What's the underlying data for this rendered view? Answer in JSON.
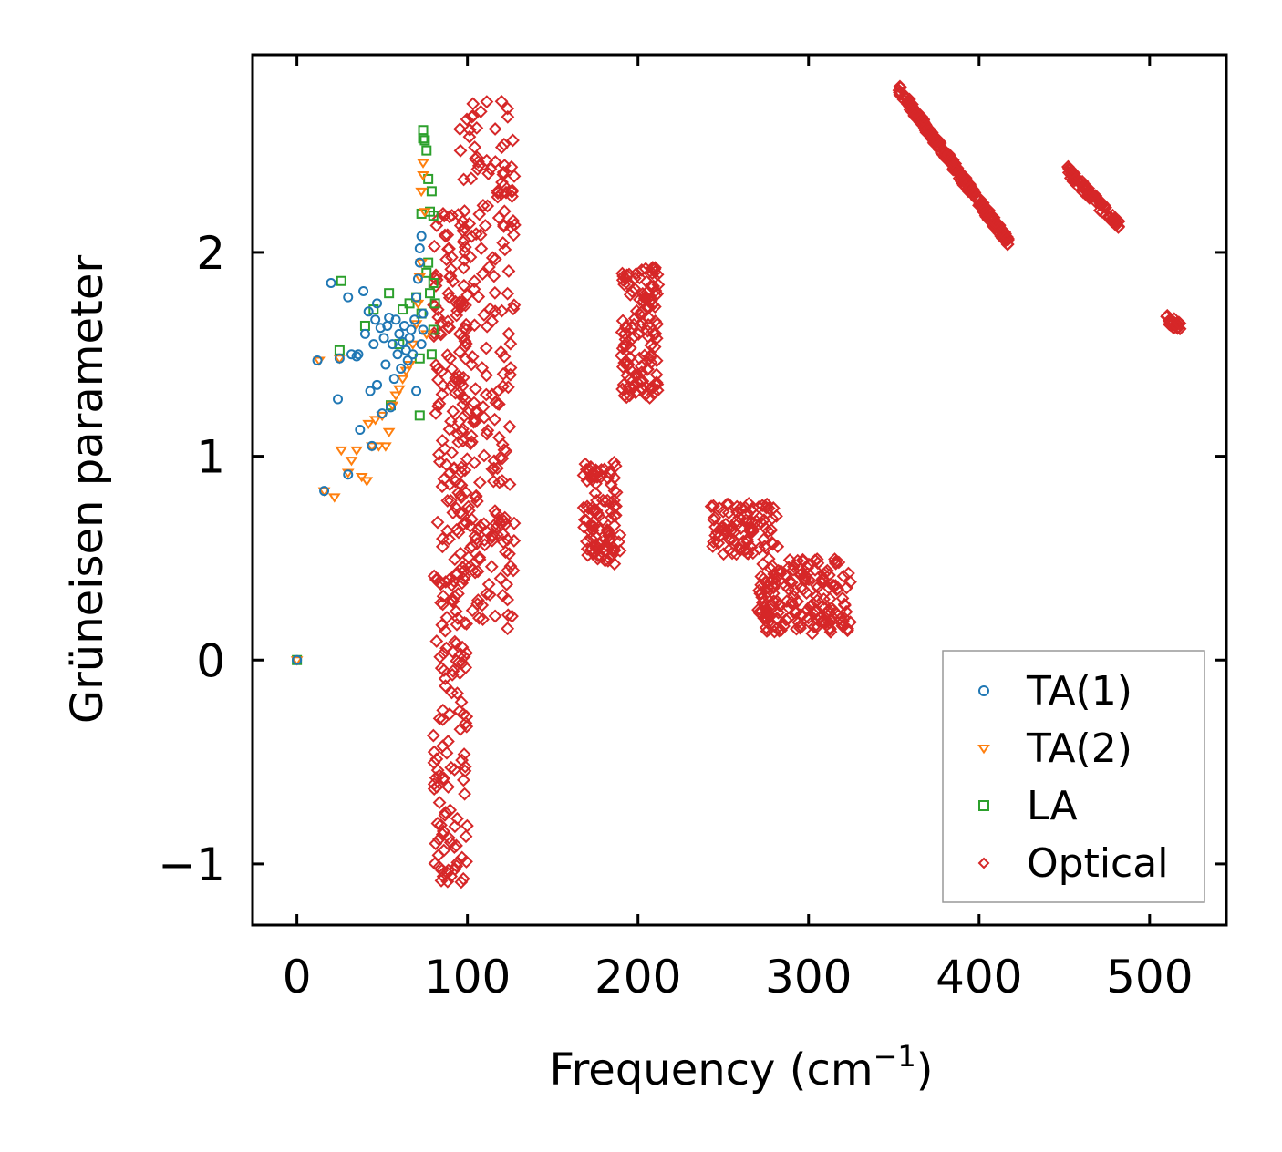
{
  "chart_data": {
    "type": "scatter",
    "xlabel": "Frequency (cm",
    "xlabel_sup": "−1",
    "xlabel_close": ")",
    "ylabel": "Grüneisen parameter",
    "xlim": [
      -26,
      545
    ],
    "ylim": [
      -1.3,
      2.97
    ],
    "xticks": [
      0,
      100,
      200,
      300,
      400,
      500
    ],
    "xtick_labels": [
      "0",
      "100",
      "200",
      "300",
      "400",
      "500"
    ],
    "yticks": [
      -1,
      0,
      1,
      2
    ],
    "ytick_labels": [
      "−1",
      "0",
      "1",
      "2"
    ],
    "legend_position": "lower-right",
    "series": [
      {
        "name": "TA(1)",
        "marker": "circle",
        "color": "#1f77b4",
        "points": [
          [
            0,
            0
          ],
          [
            12,
            1.47
          ],
          [
            16,
            0.83
          ],
          [
            20,
            1.85
          ],
          [
            24,
            1.28
          ],
          [
            25,
            1.48
          ],
          [
            30,
            0.91
          ],
          [
            30,
            1.78
          ],
          [
            32,
            1.5
          ],
          [
            35,
            1.49
          ],
          [
            36,
            1.5
          ],
          [
            37,
            1.13
          ],
          [
            39,
            1.81
          ],
          [
            40,
            1.6
          ],
          [
            42,
            1.71
          ],
          [
            43,
            1.32
          ],
          [
            44,
            1.05
          ],
          [
            45,
            1.55
          ],
          [
            46,
            1.67
          ],
          [
            47,
            1.75
          ],
          [
            47,
            1.35
          ],
          [
            49,
            1.63
          ],
          [
            50,
            1.21
          ],
          [
            51,
            1.58
          ],
          [
            52,
            1.45
          ],
          [
            53,
            1.64
          ],
          [
            54,
            1.68
          ],
          [
            55,
            1.24
          ],
          [
            56,
            1.55
          ],
          [
            57,
            1.38
          ],
          [
            58,
            1.67
          ],
          [
            59,
            1.5
          ],
          [
            60,
            1.6
          ],
          [
            61,
            1.43
          ],
          [
            62,
            1.56
          ],
          [
            63,
            1.64
          ],
          [
            64,
            1.52
          ],
          [
            65,
            1.47
          ],
          [
            66,
            1.58
          ],
          [
            67,
            1.62
          ],
          [
            68,
            1.5
          ],
          [
            69,
            1.67
          ],
          [
            70,
            1.32
          ],
          [
            70,
            1.78
          ],
          [
            71,
            1.87
          ],
          [
            72,
            1.95
          ],
          [
            72,
            2.02
          ],
          [
            73,
            2.08
          ],
          [
            73,
            1.55
          ],
          [
            74,
            1.62
          ],
          [
            74,
            1.7
          ]
        ]
      },
      {
        "name": "TA(2)",
        "marker": "triangle-down",
        "color": "#ff7f0e",
        "points": [
          [
            0,
            0
          ],
          [
            13,
            1.47
          ],
          [
            16,
            0.83
          ],
          [
            22,
            0.8
          ],
          [
            25,
            1.48
          ],
          [
            26,
            1.03
          ],
          [
            30,
            0.92
          ],
          [
            32,
            0.98
          ],
          [
            35,
            1.03
          ],
          [
            38,
            0.9
          ],
          [
            41,
            0.88
          ],
          [
            42,
            1.16
          ],
          [
            44,
            1.05
          ],
          [
            46,
            1.18
          ],
          [
            48,
            1.05
          ],
          [
            50,
            1.2
          ],
          [
            52,
            1.05
          ],
          [
            54,
            1.12
          ],
          [
            56,
            1.25
          ],
          [
            58,
            1.3
          ],
          [
            60,
            1.33
          ],
          [
            62,
            1.38
          ],
          [
            64,
            1.42
          ],
          [
            66,
            1.45
          ],
          [
            68,
            1.55
          ],
          [
            70,
            1.65
          ],
          [
            71,
            1.75
          ],
          [
            72,
            1.88
          ],
          [
            73,
            1.95
          ],
          [
            73,
            2.3
          ],
          [
            74,
            2.38
          ],
          [
            74,
            2.44
          ],
          [
            75,
            2.2
          ],
          [
            76,
            1.6
          ]
        ]
      },
      {
        "name": "LA",
        "marker": "square",
        "color": "#2ca02c",
        "points": [
          [
            0,
            0
          ],
          [
            26,
            1.86
          ],
          [
            25,
            1.52
          ],
          [
            40,
            1.64
          ],
          [
            45,
            1.72
          ],
          [
            54,
            1.8
          ],
          [
            55,
            1.25
          ],
          [
            60,
            1.55
          ],
          [
            62,
            1.72
          ],
          [
            66,
            1.75
          ],
          [
            70,
            1.78
          ],
          [
            72,
            1.2
          ],
          [
            72,
            1.48
          ],
          [
            73,
            1.7
          ],
          [
            73,
            2.19
          ],
          [
            74,
            2.56
          ],
          [
            74,
            2.6
          ],
          [
            75,
            2.55
          ],
          [
            76,
            2.5
          ],
          [
            76,
            1.9
          ],
          [
            77,
            2.36
          ],
          [
            77,
            1.95
          ],
          [
            78,
            2.2
          ],
          [
            78,
            1.8
          ],
          [
            79,
            2.3
          ],
          [
            79,
            1.5
          ],
          [
            80,
            2.18
          ],
          [
            80,
            1.85
          ],
          [
            81,
            1.75
          ],
          [
            80,
            1.62
          ]
        ]
      },
      {
        "name": "Optical",
        "marker": "diamond",
        "color": "#d62728",
        "points": [],
        "clusters": [
          {
            "x": [
              80,
              100
            ],
            "y": [
              -1.12,
              2.2
            ]
          },
          {
            "x": [
              95,
              128
            ],
            "y": [
              0.15,
              2.75
            ]
          },
          {
            "x": [
              168,
              190
            ],
            "y": [
              0.46,
              0.97
            ]
          },
          {
            "x": [
              190,
              212
            ],
            "y": [
              1.28,
              1.94
            ]
          },
          {
            "x": [
              242,
              282
            ],
            "y": [
              0.52,
              0.77
            ]
          },
          {
            "x": [
              270,
              325
            ],
            "y": [
              0.13,
              0.5
            ]
          },
          {
            "x": [
              353,
              417
            ],
            "y": [
              2.05,
              2.8
            ]
          },
          {
            "x": [
              452,
              482
            ],
            "y": [
              2.13,
              2.4
            ]
          },
          {
            "x": [
              510,
              518
            ],
            "y": [
              1.63,
              1.68
            ]
          }
        ]
      }
    ]
  }
}
